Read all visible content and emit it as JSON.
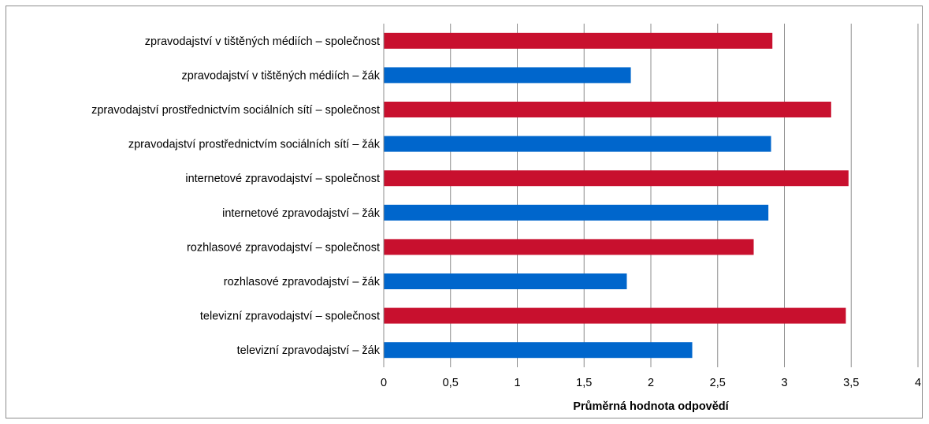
{
  "chart_data": {
    "type": "bar",
    "orientation": "horizontal",
    "xlabel": "Průměrná hodnota odpovědí",
    "ylabel": "",
    "xlim": [
      0,
      4
    ],
    "x_ticks": [
      "0",
      "0,5",
      "1",
      "1,5",
      "2",
      "2,5",
      "3",
      "3,5",
      "4"
    ],
    "x_tick_values": [
      0,
      0.5,
      1,
      1.5,
      2,
      2.5,
      3,
      3.5,
      4
    ],
    "grid": "vertical",
    "legend": "none",
    "categories": [
      "zpravodajství v tištěných médiích – společnost",
      "zpravodajství v tištěných médiích – žák",
      "zpravodajství prostřednictvím sociálních sítí – společnost",
      "zpravodajství prostřednictvím sociálních sítí – žák",
      "internetové zpravodajství – společnost",
      "internetové zpravodajství – žák",
      "rozhlasové zpravodajství – společnost",
      "rozhlasové zpravodajství – žák",
      "televizní zpravodajství – společnost",
      "televizní zpravodajství – žák"
    ],
    "values": [
      2.91,
      1.85,
      3.35,
      2.9,
      3.48,
      2.88,
      2.77,
      1.82,
      3.46,
      2.31
    ],
    "bar_colors": [
      "#c8102e",
      "#0066cc",
      "#c8102e",
      "#0066cc",
      "#c8102e",
      "#0066cc",
      "#c8102e",
      "#0066cc",
      "#c8102e",
      "#0066cc"
    ],
    "grid_color": "#8c8c8c"
  }
}
